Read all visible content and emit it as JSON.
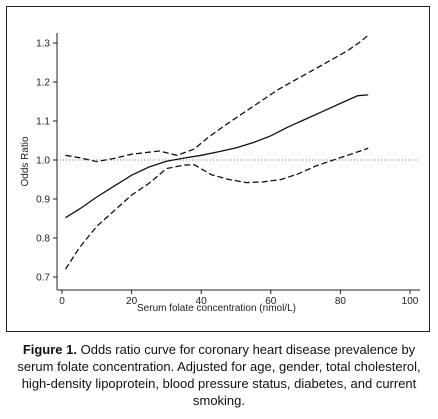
{
  "chart_data": {
    "type": "line",
    "xlabel": "Serum folate concentration (nmol/L)",
    "ylabel": "Odds Ratio",
    "xlim": [
      0,
      100
    ],
    "ylim": [
      0.7,
      1.3
    ],
    "x_ticks": [
      "0",
      "20",
      "40",
      "60",
      "80",
      "100"
    ],
    "y_ticks": [
      "0.7",
      "0.8",
      "0.9",
      "1.0",
      "1.1",
      "1.2",
      "1.3"
    ],
    "reference_line": 1.0,
    "series": [
      {
        "style": "solid",
        "points": [
          [
            1,
            0.852
          ],
          [
            5,
            0.874
          ],
          [
            10,
            0.905
          ],
          [
            15,
            0.933
          ],
          [
            20,
            0.961
          ],
          [
            25,
            0.982
          ],
          [
            30,
            0.997
          ],
          [
            35,
            1.005
          ],
          [
            40,
            1.012
          ],
          [
            45,
            1.021
          ],
          [
            50,
            1.031
          ],
          [
            55,
            1.045
          ],
          [
            60,
            1.062
          ],
          [
            65,
            1.085
          ],
          [
            70,
            1.105
          ],
          [
            75,
            1.125
          ],
          [
            80,
            1.145
          ],
          [
            85,
            1.165
          ],
          [
            88,
            1.167
          ]
        ]
      },
      {
        "style": "dashed",
        "points": [
          [
            1,
            1.012
          ],
          [
            5,
            1.006
          ],
          [
            10,
            0.996
          ],
          [
            15,
            1.004
          ],
          [
            20,
            1.015
          ],
          [
            25,
            1.02
          ],
          [
            28,
            1.023
          ],
          [
            33,
            1.012
          ],
          [
            38,
            1.028
          ],
          [
            42,
            1.058
          ],
          [
            47,
            1.09
          ],
          [
            52,
            1.12
          ],
          [
            57,
            1.15
          ],
          [
            62,
            1.18
          ],
          [
            67,
            1.205
          ],
          [
            72,
            1.23
          ],
          [
            77,
            1.255
          ],
          [
            82,
            1.28
          ],
          [
            86,
            1.305
          ],
          [
            88,
            1.32
          ]
        ]
      },
      {
        "style": "dashed",
        "points": [
          [
            1,
            0.72
          ],
          [
            5,
            0.775
          ],
          [
            10,
            0.83
          ],
          [
            15,
            0.87
          ],
          [
            20,
            0.91
          ],
          [
            25,
            0.94
          ],
          [
            30,
            0.978
          ],
          [
            35,
            0.987
          ],
          [
            38,
            0.988
          ],
          [
            43,
            0.962
          ],
          [
            48,
            0.95
          ],
          [
            53,
            0.942
          ],
          [
            58,
            0.944
          ],
          [
            63,
            0.95
          ],
          [
            68,
            0.965
          ],
          [
            73,
            0.985
          ],
          [
            78,
            1.0
          ],
          [
            83,
            1.015
          ],
          [
            88,
            1.03
          ]
        ]
      }
    ]
  },
  "caption": {
    "label": "Figure 1.",
    "text": " Odds ratio curve for coronary heart disease prevalence by serum folate concentration. Adjusted for age, gender, total cholesterol, high-density lipoprotein, blood pressure status, diabetes, and current smoking."
  }
}
